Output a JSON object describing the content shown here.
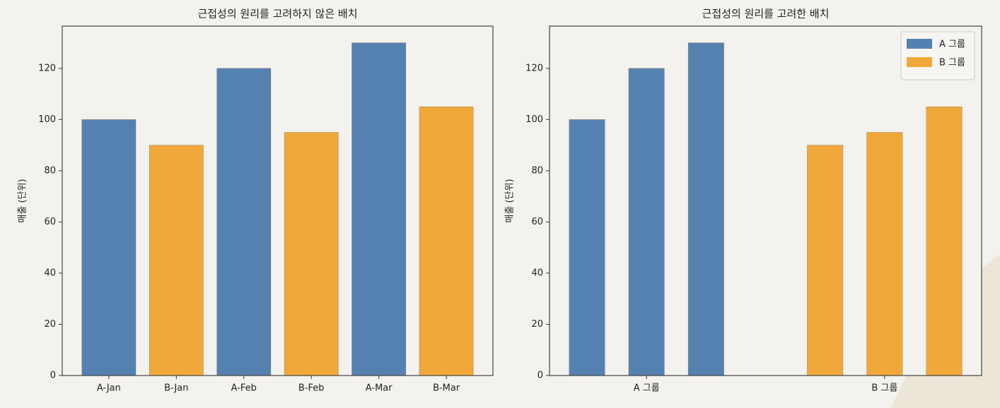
{
  "chart_data": [
    {
      "type": "bar",
      "title": "근접성의 원리를 고려하지 않은 배치",
      "ylabel": "매출 (단위)",
      "categories": [
        "A-Jan",
        "B-Jan",
        "A-Feb",
        "B-Feb",
        "A-Mar",
        "B-Mar"
      ],
      "values": [
        100,
        90,
        120,
        95,
        130,
        105
      ],
      "colors": [
        "#5581b0",
        "#f0a83a",
        "#5581b0",
        "#f0a83a",
        "#5581b0",
        "#f0a83a"
      ],
      "ylim": [
        0,
        136.5
      ],
      "yticks": [
        0,
        20,
        40,
        60,
        80,
        100,
        120
      ]
    },
    {
      "type": "bar",
      "title": "근접성의 원리를 고려한 배치",
      "ylabel": "매출 (단위)",
      "series": [
        {
          "name": "A 그룹",
          "color": "#5581b0",
          "x": [
            0,
            1,
            2
          ],
          "values": [
            100,
            120,
            130
          ]
        },
        {
          "name": "B 그룹",
          "color": "#f0a83a",
          "x": [
            4,
            5,
            6
          ],
          "values": [
            90,
            95,
            105
          ]
        }
      ],
      "xlim": [
        -0.63,
        6.63
      ],
      "xticks": [
        {
          "value": 1,
          "label": "A 그룹"
        },
        {
          "value": 5,
          "label": "B 그룹"
        }
      ],
      "ylim": [
        0,
        136.5
      ],
      "yticks": [
        0,
        20,
        40,
        60,
        80,
        100,
        120
      ],
      "legend": "upper right"
    }
  ]
}
